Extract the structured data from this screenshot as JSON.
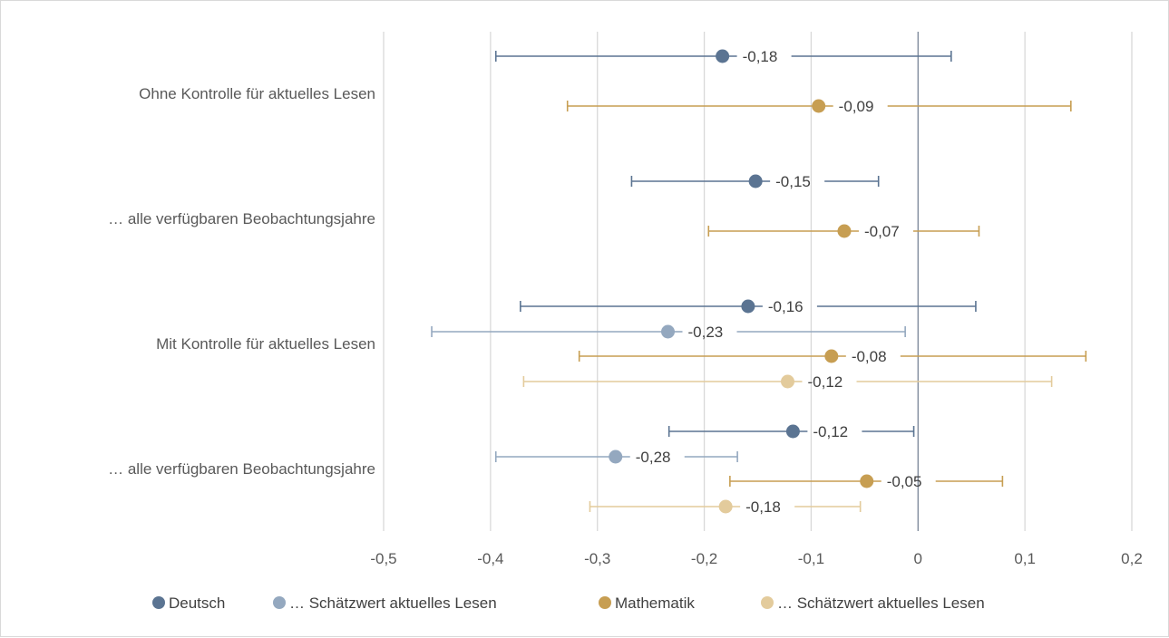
{
  "chart_data": {
    "type": "scatter",
    "orientation": "horizontal",
    "x_range": [
      -0.5,
      0.2
    ],
    "x_ticks": [
      -0.5,
      -0.4,
      -0.3,
      -0.2,
      -0.1,
      0,
      0.1,
      0.2
    ],
    "x_tick_labels": [
      "-0,5",
      "-0,4",
      "-0,3",
      "-0,2",
      "-0,1",
      "0",
      "0,1",
      "0,2"
    ],
    "grid": "vertical",
    "legend_position": "bottom",
    "groups": [
      {
        "label": "Ohne Kontrolle für aktuelles Lesen"
      },
      {
        "label": "… alle verfügbaren Beobachtungsjahre"
      },
      {
        "label": "Mit Kontrolle für aktuelles Lesen"
      },
      {
        "label": "… alle verfügbaren Beobachtungsjahre"
      }
    ],
    "series": [
      {
        "name": "Deutsch",
        "color": "#5b7492"
      },
      {
        "name": "… Schätzwert aktuelles Lesen",
        "color": "#94a8bf"
      },
      {
        "name": "Mathematik",
        "color": "#c79e52"
      },
      {
        "name": "… Schätzwert aktuelles Lesen",
        "color": "#e3cb9c"
      }
    ],
    "points": [
      {
        "group": 0,
        "series": 0,
        "value": -0.183,
        "low": -0.395,
        "high": 0.031,
        "label": "-0,18"
      },
      {
        "group": 0,
        "series": 2,
        "value": -0.093,
        "low": -0.328,
        "high": 0.143,
        "label": "-0,09"
      },
      {
        "group": 1,
        "series": 0,
        "value": -0.152,
        "low": -0.268,
        "high": -0.037,
        "label": "-0,15"
      },
      {
        "group": 1,
        "series": 2,
        "value": -0.069,
        "low": -0.196,
        "high": 0.057,
        "label": "-0,07"
      },
      {
        "group": 2,
        "series": 0,
        "value": -0.159,
        "low": -0.372,
        "high": 0.054,
        "label": "-0,16"
      },
      {
        "group": 2,
        "series": 1,
        "value": -0.234,
        "low": -0.455,
        "high": -0.012,
        "label": "-0,23"
      },
      {
        "group": 2,
        "series": 2,
        "value": -0.081,
        "low": -0.317,
        "high": 0.157,
        "label": "-0,08"
      },
      {
        "group": 2,
        "series": 3,
        "value": -0.122,
        "low": -0.369,
        "high": 0.125,
        "label": "-0,12"
      },
      {
        "group": 3,
        "series": 0,
        "value": -0.117,
        "low": -0.233,
        "high": -0.004,
        "label": "-0,12"
      },
      {
        "group": 3,
        "series": 1,
        "value": -0.283,
        "low": -0.395,
        "high": -0.169,
        "label": "-0,28"
      },
      {
        "group": 3,
        "series": 2,
        "value": -0.048,
        "low": -0.176,
        "high": 0.079,
        "label": "-0,05"
      },
      {
        "group": 3,
        "series": 3,
        "value": -0.18,
        "low": -0.307,
        "high": -0.054,
        "label": "-0,18"
      }
    ]
  }
}
